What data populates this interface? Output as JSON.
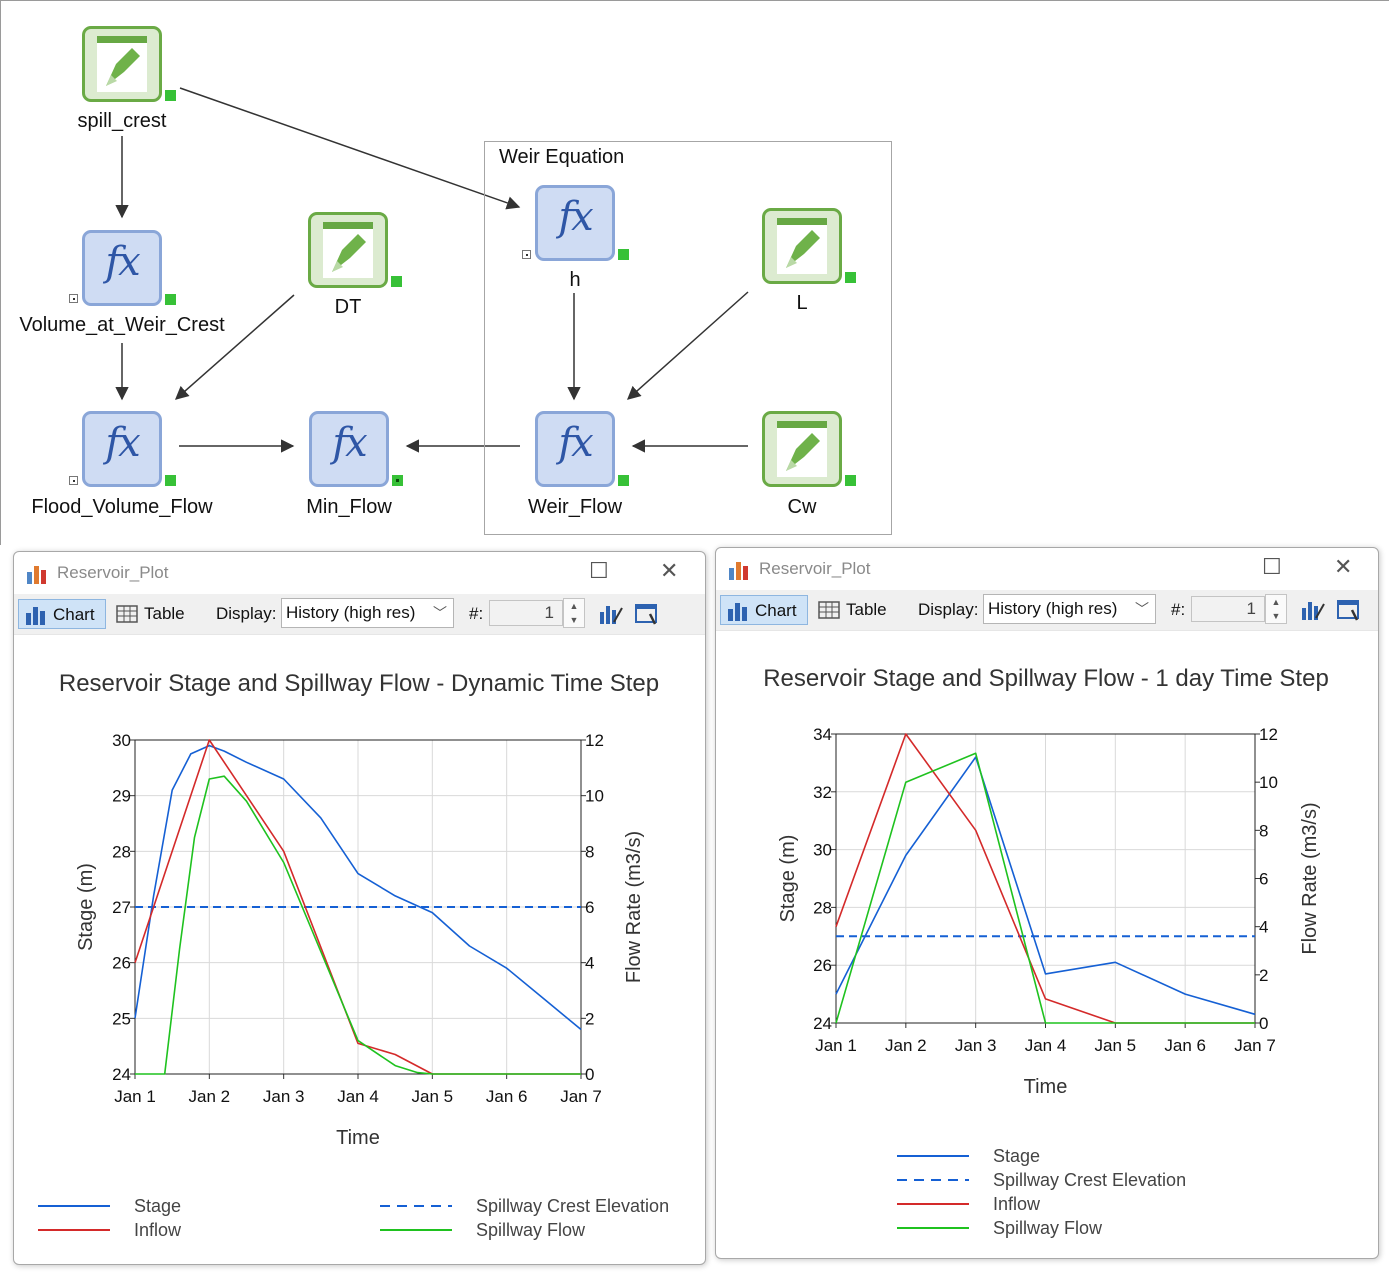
{
  "model": {
    "nodes": {
      "spill_crest": {
        "label": "spill_crest",
        "kind": "data",
        "icon": "pencil-data-icon"
      },
      "volume_at_weir_crest": {
        "label": "Volume_at_Weir_Crest",
        "kind": "expression",
        "icon": "fx-icon"
      },
      "dt": {
        "label": "DT",
        "kind": "data",
        "icon": "pencil-data-icon"
      },
      "flood_volume_flow": {
        "label": "Flood_Volume_Flow",
        "kind": "expression",
        "icon": "fx-icon"
      },
      "min_flow": {
        "label": "Min_Flow",
        "kind": "expression",
        "icon": "fx-icon"
      },
      "h": {
        "label": "h",
        "kind": "expression",
        "icon": "fx-icon"
      },
      "l": {
        "label": "L",
        "kind": "data",
        "icon": "pencil-data-icon"
      },
      "weir_flow": {
        "label": "Weir_Flow",
        "kind": "expression",
        "icon": "fx-icon"
      },
      "cw": {
        "label": "Cw",
        "kind": "data",
        "icon": "pencil-data-icon"
      }
    },
    "container": {
      "title": "Weir Equation"
    },
    "fx_glyph": "fx"
  },
  "windows": [
    {
      "title": "Reservoir_Plot",
      "toolbar": {
        "chart_label": "Chart",
        "table_label": "Table",
        "display_label": "Display:",
        "display_value": "History (high res)",
        "count_label": "#:",
        "count_value": "1"
      }
    },
    {
      "title": "Reservoir_Plot",
      "toolbar": {
        "chart_label": "Chart",
        "table_label": "Table",
        "display_label": "Display:",
        "display_value": "History (high res)",
        "count_label": "#:",
        "count_value": "1"
      }
    }
  ],
  "colors": {
    "stage": "#1560d4",
    "crest": "#1560d4",
    "inflow": "#d42a2a",
    "spillway": "#1fc21f"
  },
  "chart_data": [
    {
      "type": "line",
      "title": "Reservoir Stage and Spillway Flow - Dynamic Time Step",
      "xlabel": "Time",
      "ylabel": "Stage (m)",
      "y2label": "Flow Rate (m3/s)",
      "x_ticks": [
        "Jan 1",
        "Jan 2",
        "Jan 3",
        "Jan 4",
        "Jan 5",
        "Jan 6",
        "Jan 7"
      ],
      "xlim": [
        0,
        6
      ],
      "ylim": [
        24,
        30
      ],
      "y_ticks": [
        24,
        25,
        26,
        27,
        28,
        29,
        30
      ],
      "y2lim": [
        0,
        12
      ],
      "y2_ticks": [
        0,
        2,
        4,
        6,
        8,
        10,
        12
      ],
      "grid": true,
      "legend_placement": "bottom",
      "series": [
        {
          "name": "Stage",
          "axis": "left",
          "style": "solid",
          "color_key": "stage",
          "x": [
            0,
            0.25,
            0.5,
            0.75,
            1.0,
            1.2,
            1.5,
            2.0,
            2.5,
            3.0,
            3.5,
            4.0,
            4.5,
            5.0,
            5.5,
            6.0
          ],
          "y": [
            25.0,
            27.2,
            29.1,
            29.75,
            29.9,
            29.8,
            29.6,
            29.3,
            28.6,
            27.6,
            27.2,
            26.9,
            26.3,
            25.9,
            25.35,
            24.8
          ]
        },
        {
          "name": "Spillway Crest Elevation",
          "axis": "left",
          "style": "dashed",
          "color_key": "crest",
          "x": [
            0,
            6
          ],
          "y": [
            27.0,
            27.0
          ]
        },
        {
          "name": "Inflow",
          "axis": "right",
          "style": "solid",
          "color_key": "inflow",
          "x": [
            0,
            1.0,
            2.0,
            3.0,
            3.5,
            4.0,
            6.0
          ],
          "y": [
            4.0,
            12.0,
            8.0,
            1.1,
            0.7,
            0.0,
            0.0
          ]
        },
        {
          "name": "Spillway Flow",
          "axis": "right",
          "style": "solid",
          "color_key": "spillway",
          "x": [
            0,
            0.4,
            0.6,
            0.8,
            1.0,
            1.2,
            1.5,
            2.0,
            2.5,
            3.0,
            3.5,
            3.8,
            4.0,
            6.0
          ],
          "y": [
            0.0,
            0.0,
            4.5,
            8.5,
            10.6,
            10.7,
            9.8,
            7.6,
            4.4,
            1.2,
            0.3,
            0.05,
            0.0,
            0.0
          ]
        }
      ],
      "legend": [
        {
          "label": "Stage",
          "series": 0
        },
        {
          "label": "Spillway Crest Elevation",
          "series": 1
        },
        {
          "label": "Inflow",
          "series": 2
        },
        {
          "label": "Spillway Flow",
          "series": 3
        }
      ]
    },
    {
      "type": "line",
      "title": "Reservoir Stage and Spillway Flow - 1 day Time Step",
      "xlabel": "Time",
      "ylabel": "Stage (m)",
      "y2label": "Flow Rate (m3/s)",
      "x_ticks": [
        "Jan 1",
        "Jan 2",
        "Jan 3",
        "Jan 4",
        "Jan 5",
        "Jan 6",
        "Jan 7"
      ],
      "xlim": [
        0,
        6
      ],
      "ylim": [
        24,
        34
      ],
      "y_ticks": [
        24,
        26,
        28,
        30,
        32,
        34
      ],
      "y2lim": [
        0,
        12
      ],
      "y2_ticks": [
        0,
        2,
        4,
        6,
        8,
        10,
        12
      ],
      "grid": true,
      "legend_placement": "bottom",
      "series": [
        {
          "name": "Stage",
          "axis": "left",
          "style": "solid",
          "color_key": "stage",
          "x": [
            0,
            1,
            2,
            3,
            4,
            5,
            6
          ],
          "y": [
            25.0,
            29.8,
            33.2,
            25.7,
            26.1,
            25.0,
            24.3
          ]
        },
        {
          "name": "Spillway Crest Elevation",
          "axis": "left",
          "style": "dashed",
          "color_key": "crest",
          "x": [
            0,
            6
          ],
          "y": [
            27.0,
            27.0
          ]
        },
        {
          "name": "Inflow",
          "axis": "right",
          "style": "solid",
          "color_key": "inflow",
          "x": [
            0,
            1,
            2,
            3,
            4,
            6
          ],
          "y": [
            4.0,
            12.0,
            8.0,
            1.0,
            0.0,
            0.0
          ]
        },
        {
          "name": "Spillway Flow",
          "axis": "right",
          "style": "solid",
          "color_key": "spillway",
          "x": [
            0,
            1,
            2,
            3,
            4,
            5,
            6
          ],
          "y": [
            0.0,
            10.0,
            11.2,
            0.0,
            0.0,
            0.0,
            0.0
          ]
        }
      ],
      "legend": [
        {
          "label": "Stage",
          "series": 0
        },
        {
          "label": "Spillway Crest Elevation",
          "series": 1
        },
        {
          "label": "Inflow",
          "series": 2
        },
        {
          "label": "Spillway Flow",
          "series": 3
        }
      ]
    }
  ]
}
